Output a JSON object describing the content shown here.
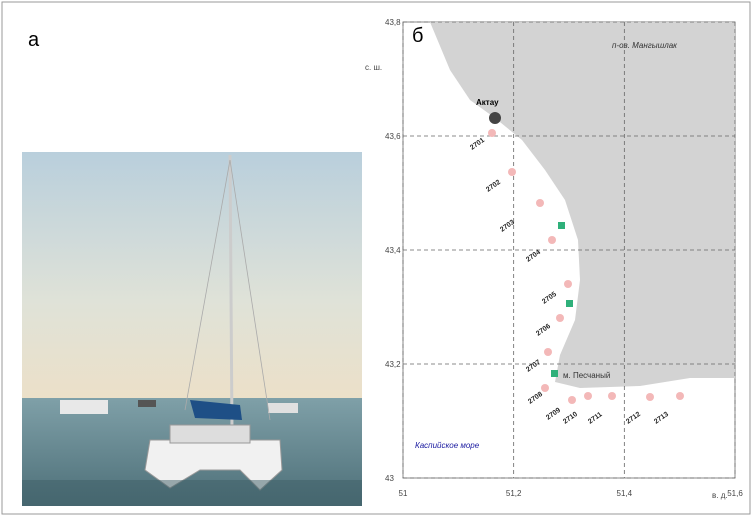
{
  "panel_a": {
    "label": "а"
  },
  "panel_b": {
    "label": "б",
    "lat_unit": "с. ш.",
    "lon_unit": "в. д.",
    "ylim": [
      43,
      43.8
    ],
    "xlim": [
      51,
      51.6
    ],
    "yticks": [
      43,
      {
        "value": 43.2,
        "label": "43,2"
      },
      {
        "value": 43.4,
        "label": "43,4"
      },
      {
        "value": 43.6,
        "label": "43,6"
      },
      {
        "value": 43.8,
        "label": "43,8"
      }
    ],
    "xticks": [
      51,
      {
        "value": 51.2,
        "label": "51,2"
      },
      {
        "value": 51.4,
        "label": "51,4"
      },
      {
        "value": 51.6,
        "label": "51,6"
      }
    ],
    "places": {
      "peninsula": "п-ов. Мангышлак",
      "city": "Актау",
      "cape": "м. Песчаный",
      "sea": "Каспийское море"
    },
    "stations": [
      "2701",
      "2702",
      "2703",
      "2704",
      "2705",
      "2706",
      "2707",
      "2708",
      "2709",
      "2710",
      "2711",
      "2712",
      "2713"
    ]
  }
}
